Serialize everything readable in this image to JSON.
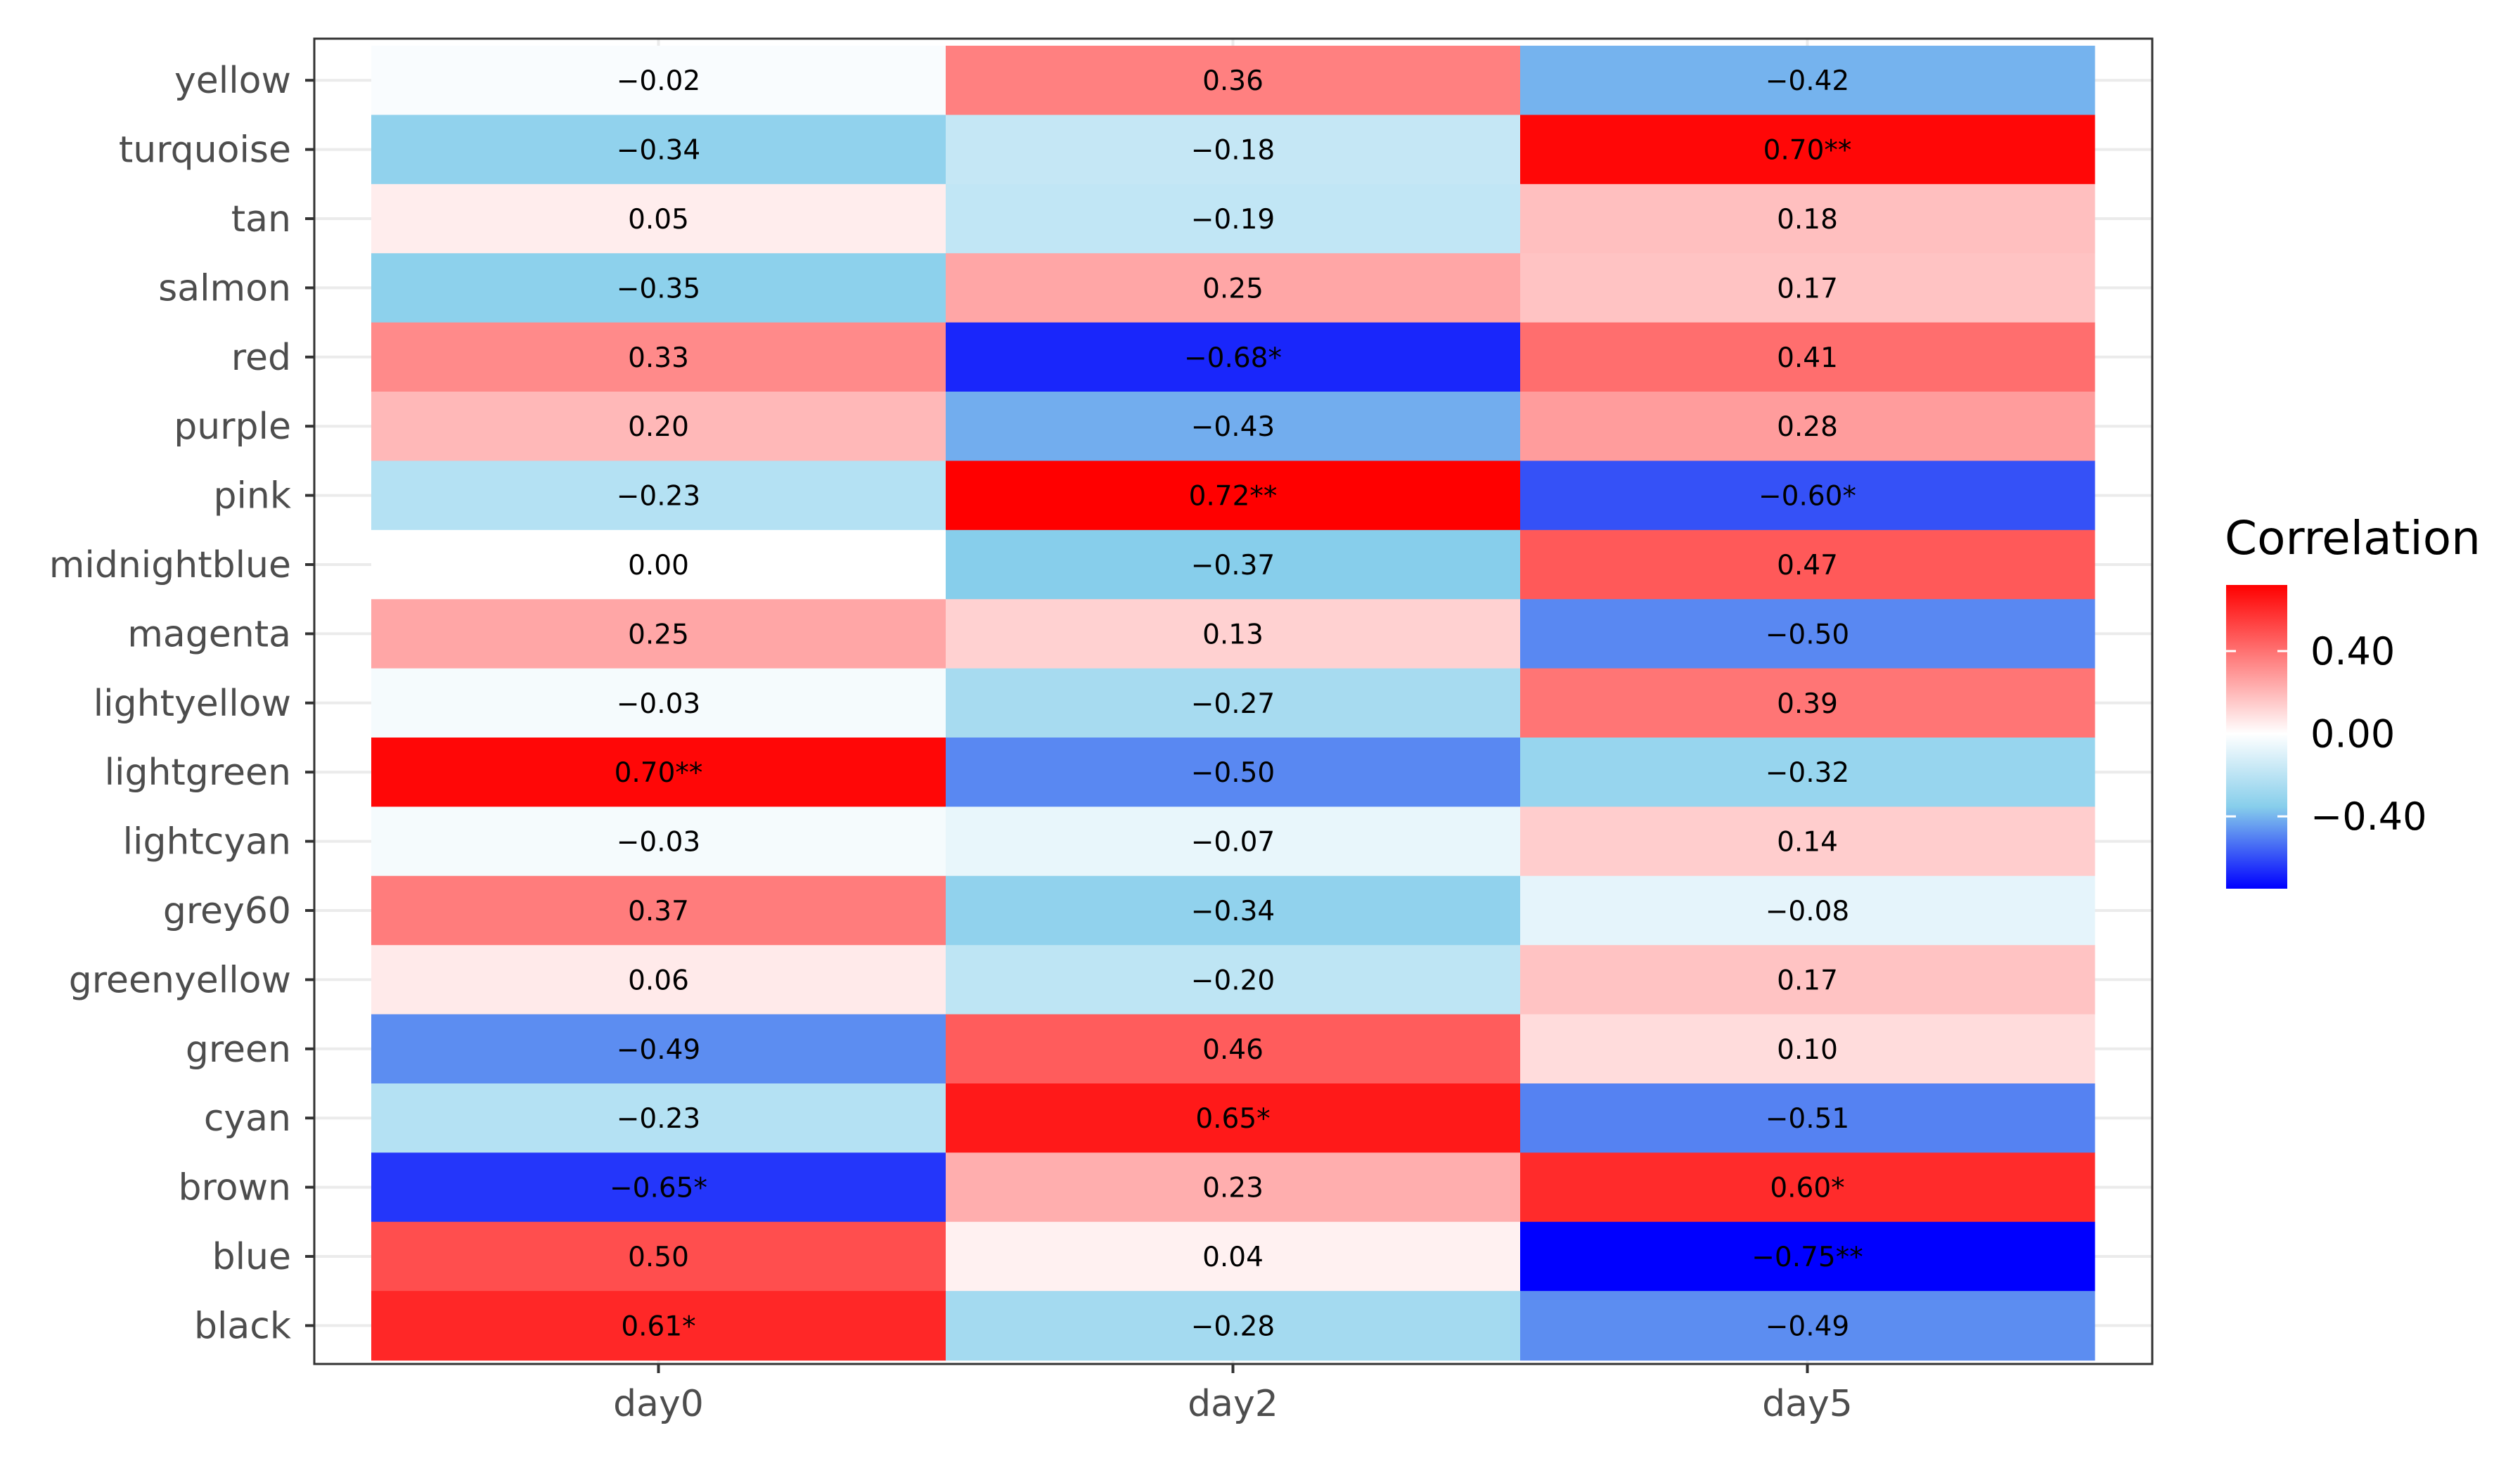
{
  "chart_data": {
    "type": "heatmap",
    "title": "",
    "xlabel": "",
    "ylabel": "",
    "x_categories": [
      "day0",
      "day2",
      "day5"
    ],
    "y_categories": [
      "yellow",
      "turquoise",
      "tan",
      "salmon",
      "red",
      "purple",
      "pink",
      "midnightblue",
      "magenta",
      "lightyellow",
      "lightgreen",
      "lightcyan",
      "grey60",
      "greenyellow",
      "green",
      "cyan",
      "brown",
      "blue",
      "black"
    ],
    "values": [
      [
        -0.02,
        0.36,
        -0.42
      ],
      [
        -0.34,
        -0.18,
        0.7
      ],
      [
        0.05,
        -0.19,
        0.18
      ],
      [
        -0.35,
        0.25,
        0.17
      ],
      [
        0.33,
        -0.68,
        0.41
      ],
      [
        0.2,
        -0.43,
        0.28
      ],
      [
        -0.23,
        0.72,
        -0.6
      ],
      [
        0.0,
        -0.37,
        0.47
      ],
      [
        0.25,
        0.13,
        -0.5
      ],
      [
        -0.03,
        -0.27,
        0.39
      ],
      [
        0.7,
        -0.5,
        -0.32
      ],
      [
        -0.03,
        -0.07,
        0.14
      ],
      [
        0.37,
        -0.34,
        -0.08
      ],
      [
        0.06,
        -0.2,
        0.17
      ],
      [
        -0.49,
        0.46,
        0.1
      ],
      [
        -0.23,
        0.65,
        -0.51
      ],
      [
        -0.65,
        0.23,
        0.6
      ],
      [
        0.5,
        0.04,
        -0.75
      ],
      [
        0.61,
        -0.28,
        -0.49
      ]
    ],
    "labels": [
      [
        "−0.02",
        "0.36",
        "−0.42"
      ],
      [
        "−0.34",
        "−0.18",
        "0.70**"
      ],
      [
        "0.05",
        "−0.19",
        "0.18"
      ],
      [
        "−0.35",
        "0.25",
        "0.17"
      ],
      [
        "0.33",
        "−0.68*",
        "0.41"
      ],
      [
        "0.20",
        "−0.43",
        "0.28"
      ],
      [
        "−0.23",
        "0.72**",
        "−0.60*"
      ],
      [
        "0.00",
        "−0.37",
        "0.47"
      ],
      [
        "0.25",
        "0.13",
        "−0.50"
      ],
      [
        "−0.03",
        "−0.27",
        "0.39"
      ],
      [
        "0.70**",
        "−0.50",
        "−0.32"
      ],
      [
        "−0.03",
        "−0.07",
        "0.14"
      ],
      [
        "0.37",
        "−0.34",
        "−0.08"
      ],
      [
        "0.06",
        "−0.20",
        "0.17"
      ],
      [
        "−0.49",
        "0.46",
        "0.10"
      ],
      [
        "−0.23",
        "0.65*",
        "−0.51"
      ],
      [
        "−0.65*",
        "0.23",
        "0.60*"
      ],
      [
        "0.50",
        "0.04",
        "−0.75**"
      ],
      [
        "0.61*",
        "−0.28",
        "−0.49"
      ]
    ],
    "colorscale": {
      "low": "#0000FF",
      "mid_low": "#87CEEB",
      "mid": "#FFFFFF",
      "high": "#FF0000",
      "range": [
        -0.75,
        0.72
      ]
    },
    "legend": {
      "title": "Correlation",
      "ticks": [
        {
          "value": 0.4,
          "label": "0.40"
        },
        {
          "value": 0.0,
          "label": "0.00"
        },
        {
          "value": -0.4,
          "label": "−0.40"
        }
      ],
      "position": "right"
    },
    "grid": true
  }
}
